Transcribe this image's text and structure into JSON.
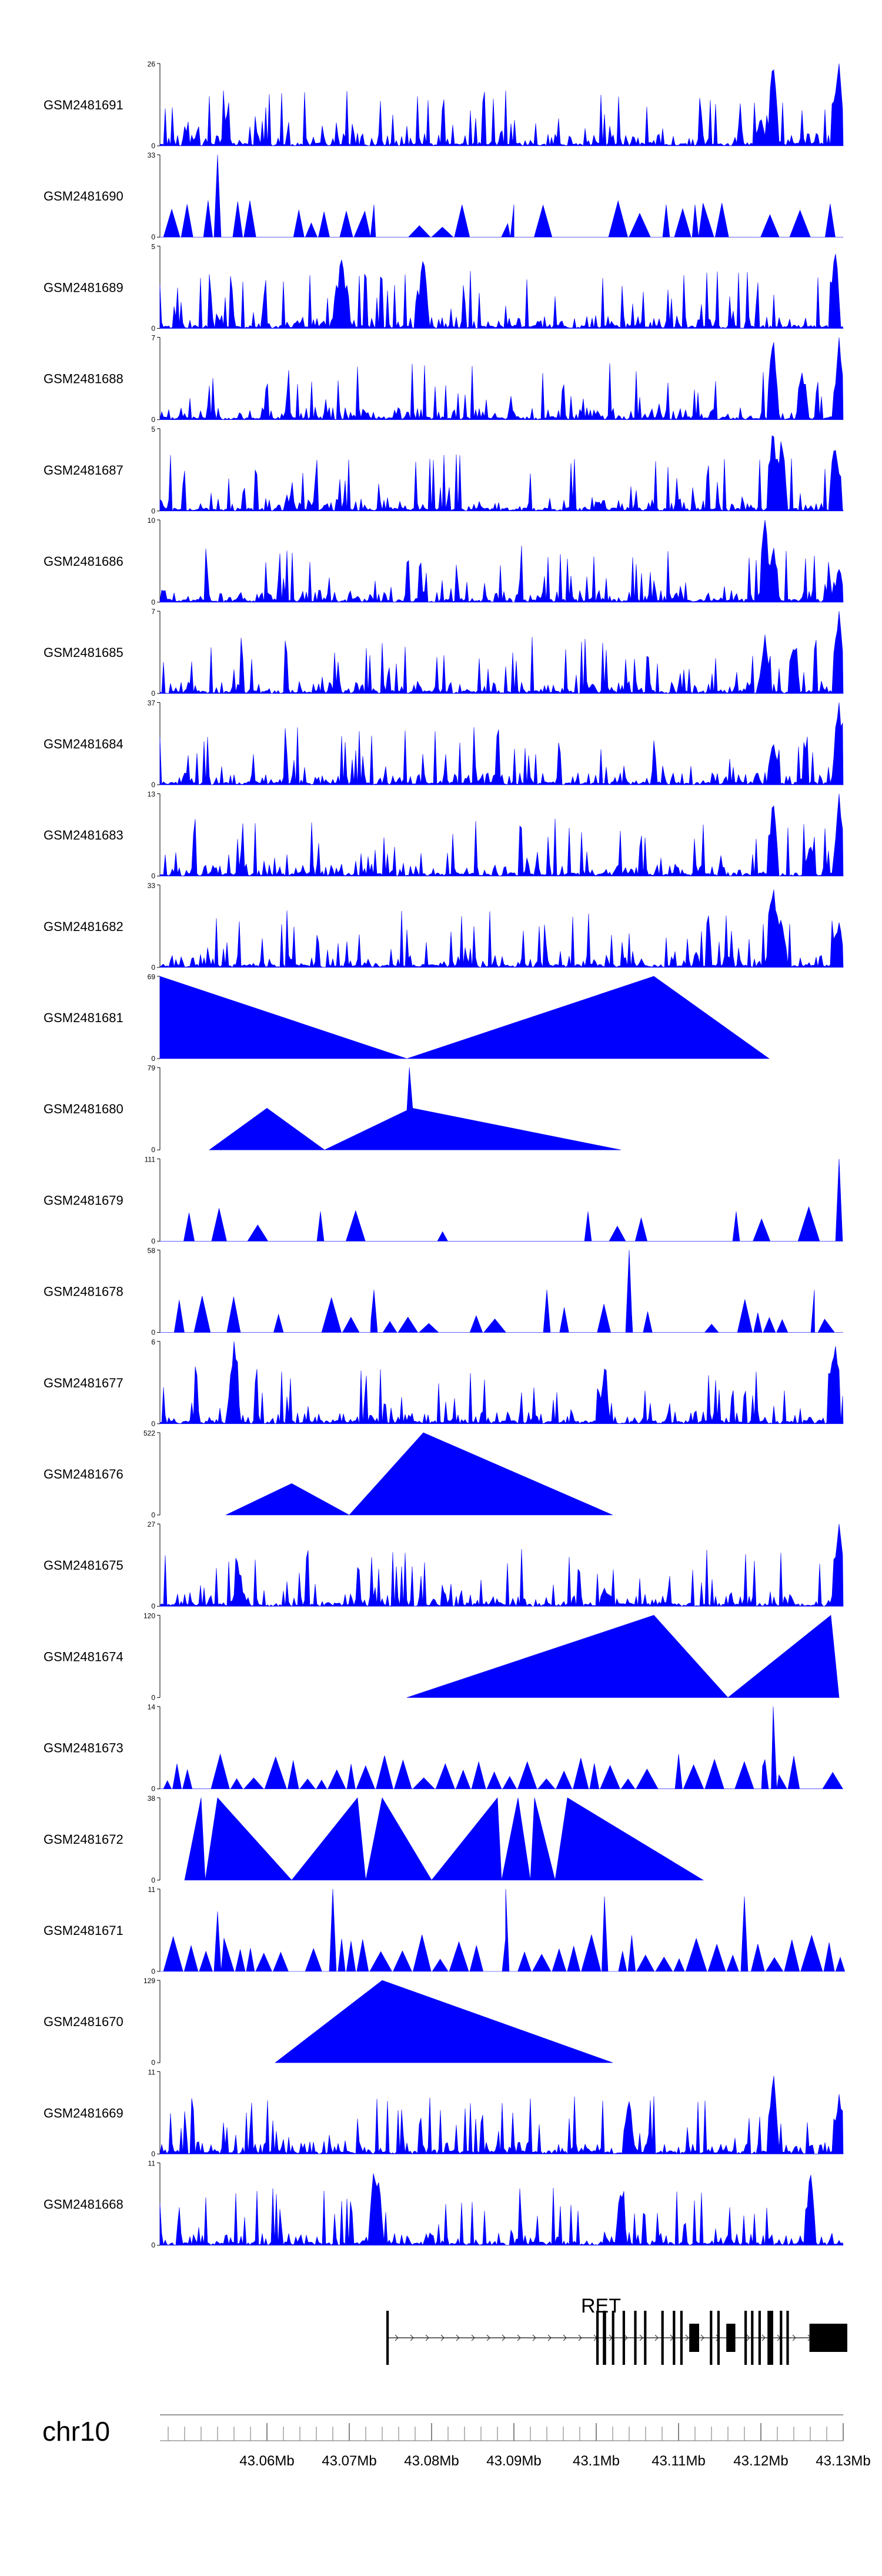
{
  "chart_data": {
    "type": "area",
    "chromosome": "chr10",
    "x_range_mb": [
      43.047,
      43.13
    ],
    "x_ticks": [
      "43.06Mb",
      "43.07Mb",
      "43.08Mb",
      "43.09Mb",
      "43.1Mb",
      "43.11Mb",
      "43.12Mb",
      "43.13Mb"
    ],
    "x_tick_values_mb": [
      43.06,
      43.07,
      43.08,
      43.09,
      43.1,
      43.11,
      43.12,
      43.13
    ],
    "fill_color": "#0000ff",
    "tracks": [
      {
        "name": "GSM2481691",
        "ymax": "26",
        "style": "dense",
        "hot": [
          [
            43.1215,
            26
          ],
          [
            43.1295,
            26
          ],
          [
            43.12,
            9
          ]
        ]
      },
      {
        "name": "GSM2481690",
        "ymax": "33",
        "style": "sparse",
        "density": 0.5,
        "hot": [
          [
            43.054,
            33
          ],
          [
            43.073,
            13
          ],
          [
            43.09,
            13
          ],
          [
            43.1085,
            13
          ],
          [
            43.112,
            13
          ]
        ]
      },
      {
        "name": "GSM2481689",
        "ymax": "5",
        "style": "dense",
        "hot": [
          [
            43.129,
            5
          ],
          [
            43.069,
            4.5
          ],
          [
            43.079,
            4.5
          ]
        ]
      },
      {
        "name": "GSM2481688",
        "ymax": "7",
        "style": "dense",
        "hot": [
          [
            43.1215,
            7
          ],
          [
            43.1295,
            7
          ],
          [
            43.125,
            4
          ]
        ]
      },
      {
        "name": "GSM2481687",
        "ymax": "5",
        "style": "dense",
        "hot": [
          [
            43.1215,
            5
          ],
          [
            43.1225,
            4.5
          ],
          [
            43.129,
            4
          ]
        ]
      },
      {
        "name": "GSM2481686",
        "ymax": "10",
        "style": "dense",
        "hot": [
          [
            43.1205,
            10
          ],
          [
            43.1215,
            7
          ],
          [
            43.1295,
            4
          ]
        ]
      },
      {
        "name": "GSM2481685",
        "ymax": "7",
        "style": "dense",
        "hot": [
          [
            43.1295,
            7
          ],
          [
            43.1205,
            5
          ],
          [
            43.124,
            4
          ]
        ]
      },
      {
        "name": "GSM2481684",
        "ymax": "37",
        "style": "dense",
        "hot": [
          [
            43.1215,
            20
          ],
          [
            43.1295,
            37
          ],
          [
            43.1305,
            25
          ]
        ]
      },
      {
        "name": "GSM2481683",
        "ymax": "13",
        "style": "dense",
        "hot": [
          [
            43.1215,
            12
          ],
          [
            43.1295,
            13
          ],
          [
            43.126,
            5
          ]
        ]
      },
      {
        "name": "GSM2481682",
        "ymax": "33",
        "style": "dense",
        "hot": [
          [
            43.1215,
            33
          ],
          [
            43.1295,
            18
          ],
          [
            43.1225,
            20
          ]
        ]
      },
      {
        "name": "GSM2481681",
        "ymax": "69",
        "style": "poly",
        "points": [
          [
            43.047,
            69
          ],
          [
            43.077,
            0
          ],
          [
            43.107,
            69
          ],
          [
            43.121,
            0
          ]
        ]
      },
      {
        "name": "GSM2481680",
        "ymax": "79",
        "style": "poly",
        "points": [
          [
            43.053,
            0
          ],
          [
            43.06,
            40
          ],
          [
            43.067,
            0
          ],
          [
            43.077,
            38
          ],
          [
            43.0773,
            79
          ],
          [
            43.0777,
            40
          ],
          [
            43.103,
            0
          ]
        ]
      },
      {
        "name": "GSM2481679",
        "ymax": "111",
        "style": "sparse",
        "density": 0.3,
        "hot": [
          [
            43.1295,
            111
          ],
          [
            43.117,
            40
          ],
          [
            43.099,
            40
          ],
          [
            43.0665,
            40
          ]
        ]
      },
      {
        "name": "GSM2481678",
        "ymax": "58",
        "style": "sparse",
        "density": 0.4,
        "hot": [
          [
            43.104,
            58
          ],
          [
            43.1265,
            30
          ],
          [
            43.073,
            30
          ],
          [
            43.094,
            30
          ]
        ]
      },
      {
        "name": "GSM2481677",
        "ymax": "6",
        "style": "dense",
        "hot": [
          [
            43.056,
            6
          ],
          [
            43.129,
            6
          ],
          [
            43.101,
            4
          ]
        ]
      },
      {
        "name": "GSM2481676",
        "ymax": "522",
        "style": "poly",
        "points": [
          [
            43.055,
            0
          ],
          [
            43.063,
            200
          ],
          [
            43.07,
            0
          ],
          [
            43.079,
            522
          ],
          [
            43.102,
            0
          ]
        ]
      },
      {
        "name": "GSM2481675",
        "ymax": "27",
        "style": "dense",
        "hot": [
          [
            43.1295,
            27
          ],
          [
            43.101,
            6
          ],
          [
            43.057,
            5
          ]
        ]
      },
      {
        "name": "GSM2481674",
        "ymax": "120",
        "style": "poly",
        "points": [
          [
            43.077,
            0
          ],
          [
            43.107,
            120
          ],
          [
            43.116,
            0
          ],
          [
            43.1285,
            120
          ],
          [
            43.1295,
            0
          ]
        ]
      },
      {
        "name": "GSM2481673",
        "ymax": "14",
        "style": "sparse",
        "density": 0.85,
        "hot": [
          [
            43.1215,
            14
          ],
          [
            43.1205,
            5
          ]
        ]
      },
      {
        "name": "GSM2481672",
        "ymax": "38",
        "style": "poly",
        "points": [
          [
            43.05,
            0
          ],
          [
            43.052,
            38
          ],
          [
            43.0525,
            0
          ],
          [
            43.054,
            38
          ],
          [
            43.063,
            0
          ],
          [
            43.071,
            38
          ],
          [
            43.072,
            0
          ],
          [
            43.074,
            38
          ],
          [
            43.08,
            0
          ],
          [
            43.088,
            38
          ],
          [
            43.0885,
            0
          ],
          [
            43.0905,
            38
          ],
          [
            43.092,
            0
          ],
          [
            43.0925,
            38
          ],
          [
            43.095,
            0
          ],
          [
            43.0965,
            38
          ],
          [
            43.113,
            0
          ]
        ]
      },
      {
        "name": "GSM2481671",
        "ymax": "11",
        "style": "sparse",
        "density": 0.9,
        "hot": [
          [
            43.068,
            11
          ],
          [
            43.089,
            11
          ],
          [
            43.101,
            10
          ],
          [
            43.118,
            10
          ],
          [
            43.054,
            8
          ]
        ]
      },
      {
        "name": "GSM2481670",
        "ymax": "129",
        "style": "poly",
        "points": [
          [
            43.061,
            0
          ],
          [
            43.074,
            129
          ],
          [
            43.102,
            0
          ]
        ]
      },
      {
        "name": "GSM2481669",
        "ymax": "11",
        "style": "dense",
        "hot": [
          [
            43.1215,
            11
          ],
          [
            43.1295,
            8
          ],
          [
            43.104,
            7
          ]
        ]
      },
      {
        "name": "GSM2481668",
        "ymax": "11",
        "style": "dense",
        "hot": [
          [
            43.073,
            10
          ],
          [
            43.0735,
            9
          ],
          [
            43.126,
            10
          ],
          [
            43.103,
            7
          ]
        ]
      }
    ],
    "gene": {
      "name": "RET",
      "strand": "+",
      "start_mb": 43.0745,
      "end_mb": 43.1305,
      "exons": [
        [
          43.0745,
          43.0748
        ],
        [
          43.1,
          43.1003
        ],
        [
          43.1008,
          43.1012
        ],
        [
          43.1019,
          43.1022
        ],
        [
          43.1032,
          43.1035
        ],
        [
          43.1046,
          43.1049
        ],
        [
          43.1058,
          43.1061
        ],
        [
          43.1079,
          43.1082
        ],
        [
          43.1093,
          43.1096
        ],
        [
          43.1102,
          43.1105
        ],
        [
          43.1113,
          43.1125
        ],
        [
          43.1138,
          43.1141
        ],
        [
          43.1147,
          43.115
        ],
        [
          43.1158,
          43.1169
        ],
        [
          43.118,
          43.1183
        ],
        [
          43.1188,
          43.1191
        ],
        [
          43.1197,
          43.12
        ],
        [
          43.1208,
          43.1215
        ],
        [
          43.1223,
          43.1226
        ],
        [
          43.1231,
          43.1234
        ],
        [
          43.1259,
          43.1305
        ]
      ]
    }
  }
}
